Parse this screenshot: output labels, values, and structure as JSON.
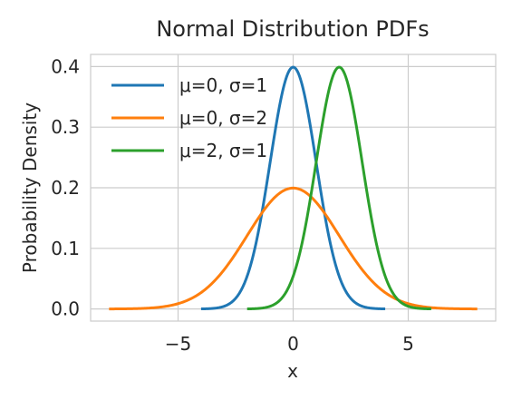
{
  "chart_data": {
    "type": "line",
    "title": "Normal Distribution PDFs",
    "xlabel": "x",
    "ylabel": "Probability Density",
    "xlim": [
      -8.8,
      8.8
    ],
    "ylim": [
      -0.02,
      0.42
    ],
    "xticks": [
      -5,
      0,
      5
    ],
    "xtick_labels": [
      "−5",
      "0",
      "5"
    ],
    "yticks": [
      0.0,
      0.1,
      0.2,
      0.3,
      0.4
    ],
    "ytick_labels": [
      "0.0",
      "0.1",
      "0.2",
      "0.3",
      "0.4"
    ],
    "grid": true,
    "legend_position": "top-left",
    "series": [
      {
        "name": "μ=0, σ=1",
        "mu": 0,
        "sigma": 1,
        "x_range": [
          -4,
          4
        ],
        "color": "#1f77b4"
      },
      {
        "name": "μ=0, σ=2",
        "mu": 0,
        "sigma": 2,
        "x_range": [
          -8,
          8
        ],
        "color": "#ff7f0e"
      },
      {
        "name": "μ=2, σ=1",
        "mu": 2,
        "sigma": 1,
        "x_range": [
          -2,
          6
        ],
        "color": "#2ca02c"
      }
    ]
  }
}
